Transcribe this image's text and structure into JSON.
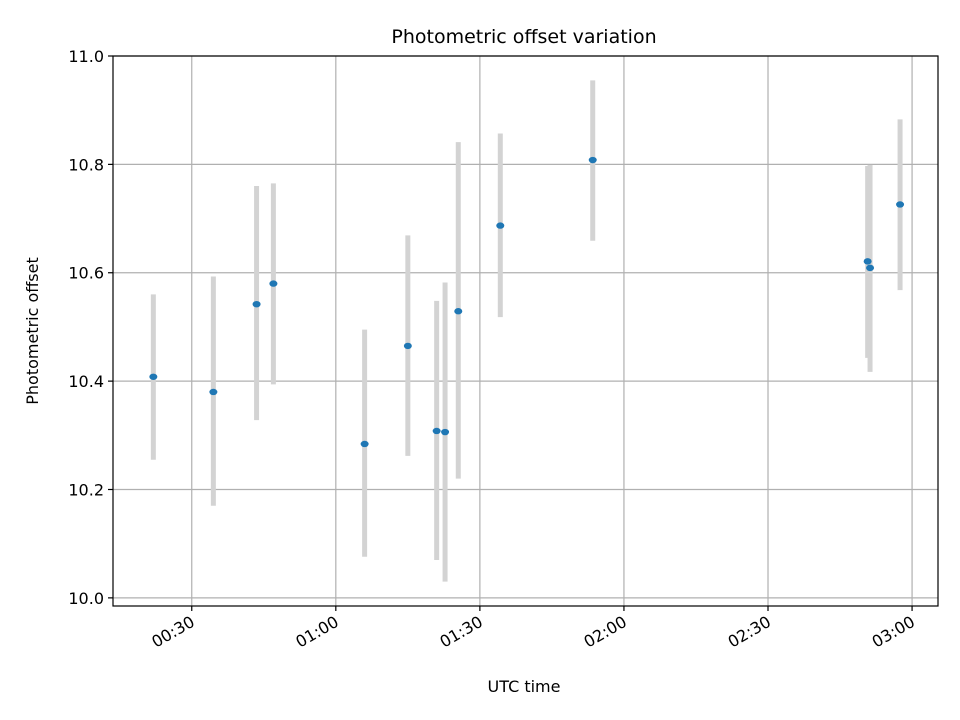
{
  "chart_data": {
    "type": "scatter",
    "title": "Photometric offset variation",
    "xlabel": "UTC time",
    "ylabel": "Photometric offset",
    "x_unit": "UTC time (HH:MM)",
    "xlim": [
      "00:13:36",
      "03:05:24"
    ],
    "ylim": [
      9.985,
      11.0
    ],
    "x_ticks": [
      "00:30",
      "01:00",
      "01:30",
      "02:00",
      "02:30",
      "03:00"
    ],
    "y_ticks": [
      "10.0",
      "10.2",
      "10.4",
      "10.6",
      "10.8",
      "11.0"
    ],
    "grid": true,
    "legend": "none",
    "marker_color": "#1f77b4",
    "errorbar_color": "#d3d3d3",
    "points": [
      {
        "x": "00:22:00",
        "y": 10.408,
        "ymin": 10.255,
        "ymax": 10.56
      },
      {
        "x": "00:34:30",
        "y": 10.38,
        "ymin": 10.17,
        "ymax": 10.593
      },
      {
        "x": "00:43:30",
        "y": 10.542,
        "ymin": 10.328,
        "ymax": 10.76
      },
      {
        "x": "00:47:00",
        "y": 10.58,
        "ymin": 10.394,
        "ymax": 10.765
      },
      {
        "x": "01:06:00",
        "y": 10.284,
        "ymin": 10.076,
        "ymax": 10.495
      },
      {
        "x": "01:15:00",
        "y": 10.465,
        "ymin": 10.262,
        "ymax": 10.669
      },
      {
        "x": "01:21:00",
        "y": 10.308,
        "ymin": 10.07,
        "ymax": 10.548
      },
      {
        "x": "01:22:45",
        "y": 10.306,
        "ymin": 10.03,
        "ymax": 10.582
      },
      {
        "x": "01:25:30",
        "y": 10.529,
        "ymin": 10.22,
        "ymax": 10.841
      },
      {
        "x": "01:34:15",
        "y": 10.687,
        "ymin": 10.518,
        "ymax": 10.857
      },
      {
        "x": "01:53:30",
        "y": 10.808,
        "ymin": 10.659,
        "ymax": 10.955
      },
      {
        "x": "02:50:45",
        "y": 10.621,
        "ymin": 10.443,
        "ymax": 10.797
      },
      {
        "x": "02:51:15",
        "y": 10.609,
        "ymin": 10.417,
        "ymax": 10.799
      },
      {
        "x": "02:57:30",
        "y": 10.726,
        "ymin": 10.568,
        "ymax": 10.883
      }
    ]
  }
}
